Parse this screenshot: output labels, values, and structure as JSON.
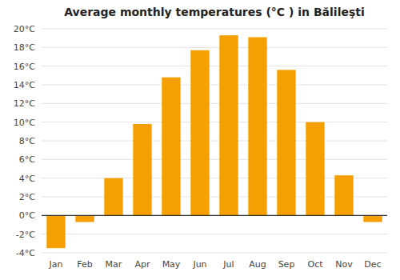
{
  "chart_data": {
    "type": "bar",
    "title": "Average monthly temperatures (°C ) in Bălileşti",
    "categories": [
      "Jan",
      "Feb",
      "Mar",
      "Apr",
      "May",
      "Jun",
      "Jul",
      "Aug",
      "Sep",
      "Oct",
      "Nov",
      "Dec"
    ],
    "values": [
      -3.5,
      -0.7,
      4.0,
      9.8,
      14.8,
      17.7,
      19.3,
      19.1,
      15.6,
      10.0,
      4.3,
      -0.7
    ],
    "color": "#f5a000",
    "ylim": [
      -4,
      20
    ],
    "yticks": [
      {
        "value": -4,
        "label": "-4°C"
      },
      {
        "value": -2,
        "label": "-2°C"
      },
      {
        "value": 0,
        "label": "0°C"
      },
      {
        "value": 2,
        "label": "2°C"
      },
      {
        "value": 4,
        "label": "4°C"
      },
      {
        "value": 6,
        "label": "6°C"
      },
      {
        "value": 8,
        "label": "8°C"
      },
      {
        "value": 10,
        "label": "10°C"
      },
      {
        "value": 12,
        "label": "12°C"
      },
      {
        "value": 14,
        "label": "14°C"
      },
      {
        "value": 16,
        "label": "16°C"
      },
      {
        "value": 18,
        "label": "18°C"
      },
      {
        "value": 20,
        "label": "20°C"
      }
    ],
    "grid": true
  }
}
